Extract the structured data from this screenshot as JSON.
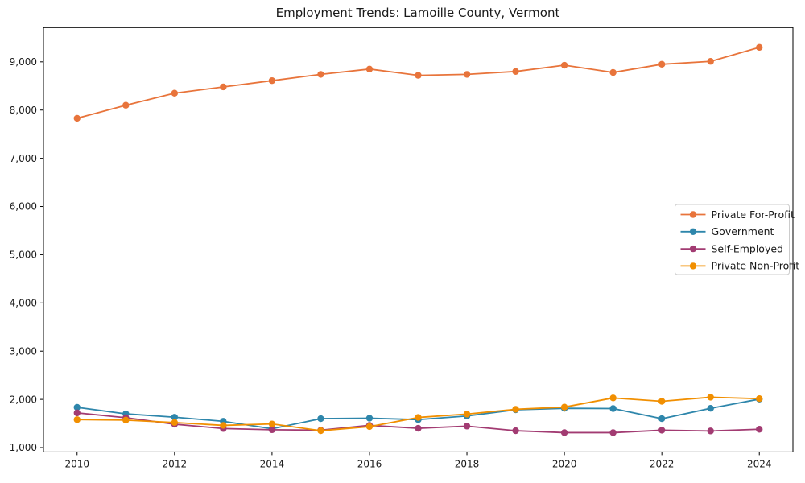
{
  "page": {
    "background": "#ffffff"
  },
  "chart_data": {
    "type": "line",
    "title": "Employment Trends: Lamoille County, Vermont",
    "xlabel": "",
    "ylabel": "",
    "grid": false,
    "marker": "circle",
    "axis_color": "#000000",
    "text_color": "#1a1a1a",
    "x": [
      2010,
      2011,
      2012,
      2013,
      2014,
      2015,
      2016,
      2017,
      2018,
      2019,
      2020,
      2021,
      2022,
      2023,
      2024
    ],
    "series": [
      {
        "name": "Private For-Profit",
        "color": "#E8743B",
        "values": [
          7830,
          8100,
          8350,
          8480,
          8610,
          8740,
          8850,
          8720,
          8740,
          8800,
          8930,
          8780,
          8950,
          9010,
          9300
        ]
      },
      {
        "name": "Government",
        "color": "#2E86AB",
        "values": [
          1835,
          1700,
          1630,
          1545,
          1390,
          1600,
          1610,
          1580,
          1655,
          1785,
          1815,
          1810,
          1600,
          1815,
          2005
        ]
      },
      {
        "name": "Self-Employed",
        "color": "#A23B72",
        "values": [
          1720,
          1620,
          1485,
          1395,
          1370,
          1360,
          1460,
          1400,
          1445,
          1350,
          1310,
          1310,
          1360,
          1345,
          1380
        ]
      },
      {
        "name": "Private Non-Profit",
        "color": "#F18F01",
        "values": [
          1580,
          1570,
          1520,
          1460,
          1490,
          1350,
          1435,
          1625,
          1695,
          1795,
          1840,
          2030,
          1960,
          2045,
          2015
        ]
      }
    ],
    "xticks": {
      "values": [
        2010,
        2012,
        2014,
        2016,
        2018,
        2020,
        2022,
        2024
      ],
      "labels": [
        "2010",
        "2012",
        "2014",
        "2016",
        "2018",
        "2020",
        "2022",
        "2024"
      ]
    },
    "yticks": {
      "values": [
        1000,
        2000,
        3000,
        4000,
        5000,
        6000,
        7000,
        8000,
        9000
      ],
      "labels": [
        "1,000",
        "2,000",
        "3,000",
        "4,000",
        "5,000",
        "6,000",
        "7,000",
        "8,000",
        "9,000"
      ]
    },
    "xlim": [
      2009.31,
      2024.69
    ],
    "ylim": [
      910,
      9710
    ],
    "legend": {
      "position": "center-right",
      "border_color": "#cccccc",
      "background": "#ffffff",
      "entries": [
        "Private For-Profit",
        "Government",
        "Self-Employed",
        "Private Non-Profit"
      ]
    }
  }
}
